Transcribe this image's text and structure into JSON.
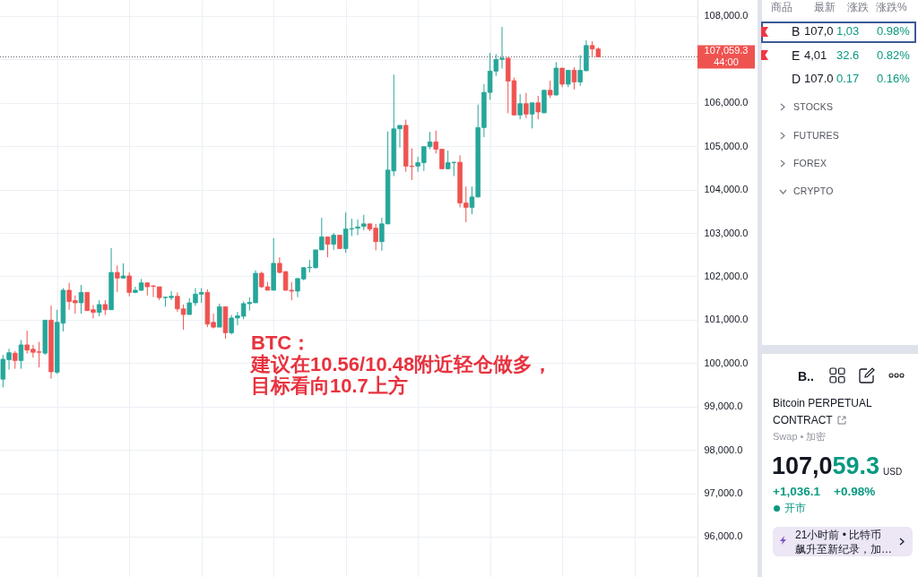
{
  "chart_data": [
    {
      "type": "candlestick",
      "categories": [
        null,
        null,
        null,
        null,
        null,
        null,
        null,
        null,
        null,
        null,
        null,
        null,
        null,
        null,
        null,
        null,
        null,
        null,
        null,
        null,
        null,
        null,
        null,
        null,
        null,
        null,
        null,
        null,
        null,
        null,
        null,
        null,
        null,
        null,
        null,
        null,
        null,
        null,
        null,
        null,
        null,
        null,
        null,
        null,
        null,
        null,
        null,
        null,
        null,
        null,
        null,
        null,
        null,
        null,
        null,
        null,
        null,
        null,
        null,
        null,
        null,
        null,
        null,
        null,
        null,
        null,
        null,
        null,
        null,
        null,
        null,
        null,
        null,
        null,
        null,
        null,
        null,
        null,
        null,
        null,
        null,
        null,
        null,
        null,
        null,
        null,
        null,
        null,
        null,
        null,
        null,
        null,
        null,
        null,
        null,
        null,
        null,
        null,
        null,
        null,
        null,
        null,
        null,
        null,
        null,
        null,
        null,
        null,
        null,
        null,
        null,
        null,
        null,
        null,
        null,
        null
      ],
      "ohlc": [
        [
          99630,
          100190,
          99440,
          100090
        ],
        [
          100080,
          100330,
          99850,
          100240
        ],
        [
          100230,
          100280,
          99870,
          100060
        ],
        [
          100060,
          100530,
          99870,
          100420
        ],
        [
          100420,
          100750,
          100220,
          100300
        ],
        [
          100320,
          100420,
          100130,
          100250
        ],
        [
          100260,
          100490,
          99900,
          100250
        ],
        [
          100230,
          100990,
          100190,
          100990
        ],
        [
          100990,
          101330,
          99640,
          99800
        ],
        [
          99790,
          101230,
          99750,
          100940
        ],
        [
          100920,
          101730,
          100730,
          101680
        ],
        [
          101680,
          101850,
          101230,
          101420
        ],
        [
          101440,
          101560,
          101140,
          101390
        ],
        [
          101390,
          101800,
          101140,
          101630
        ],
        [
          101630,
          101630,
          101200,
          101210
        ],
        [
          101230,
          101340,
          101030,
          101170
        ],
        [
          101170,
          101450,
          101080,
          101350
        ],
        [
          101350,
          101450,
          101110,
          101230
        ],
        [
          101230,
          102650,
          101230,
          102090
        ],
        [
          102090,
          102250,
          101640,
          101960
        ],
        [
          101960,
          102300,
          101950,
          102010
        ],
        [
          102010,
          102090,
          101540,
          101630
        ],
        [
          101630,
          101760,
          101610,
          101680
        ],
        [
          101680,
          101940,
          101660,
          101850
        ],
        [
          101850,
          101850,
          101560,
          101760
        ],
        [
          101780,
          101800,
          101520,
          101770
        ],
        [
          101760,
          101760,
          101450,
          101510
        ],
        [
          101510,
          101520,
          101300,
          101520
        ],
        [
          101510,
          101660,
          101450,
          101540
        ],
        [
          101540,
          101630,
          101180,
          101250
        ],
        [
          101250,
          101350,
          100770,
          101120
        ],
        [
          101120,
          101500,
          101120,
          101390
        ],
        [
          101390,
          101730,
          101320,
          101590
        ],
        [
          101590,
          101730,
          101390,
          101630
        ],
        [
          101630,
          101700,
          100830,
          100900
        ],
        [
          100940,
          101140,
          100800,
          100830
        ],
        [
          100830,
          101370,
          100830,
          101300
        ],
        [
          101300,
          101300,
          100560,
          100700
        ],
        [
          100700,
          101110,
          100660,
          101040
        ],
        [
          101040,
          101180,
          100870,
          101090
        ],
        [
          101080,
          101420,
          101010,
          101370
        ],
        [
          101370,
          101520,
          101210,
          101400
        ],
        [
          101390,
          102140,
          101390,
          102070
        ],
        [
          102070,
          102110,
          101730,
          101760
        ],
        [
          101760,
          101870,
          101680,
          101680
        ],
        [
          101680,
          102880,
          101680,
          102300
        ],
        [
          102300,
          102440,
          102070,
          102090
        ],
        [
          102110,
          102110,
          101670,
          101680
        ],
        [
          101680,
          101870,
          101450,
          101660
        ],
        [
          101660,
          101950,
          101520,
          101950
        ],
        [
          101940,
          102210,
          101910,
          102200
        ],
        [
          102200,
          102380,
          102090,
          102210
        ],
        [
          102200,
          102610,
          102180,
          102610
        ],
        [
          102610,
          103350,
          102610,
          102910
        ],
        [
          102910,
          102910,
          102440,
          102740
        ],
        [
          102740,
          103000,
          102610,
          102950
        ],
        [
          102950,
          102950,
          102630,
          102640
        ],
        [
          102640,
          103470,
          102540,
          103090
        ],
        [
          103090,
          103330,
          102930,
          103100
        ],
        [
          103110,
          103310,
          102950,
          103140
        ],
        [
          103150,
          103420,
          103060,
          103210
        ],
        [
          103210,
          103210,
          103040,
          103090
        ],
        [
          103110,
          103210,
          102600,
          102800
        ],
        [
          102800,
          103350,
          102590,
          103210
        ],
        [
          103210,
          105340,
          103200,
          104450
        ],
        [
          104430,
          106650,
          104310,
          105400
        ],
        [
          105400,
          105480,
          104970,
          105480
        ],
        [
          105480,
          105610,
          104410,
          104540
        ],
        [
          104540,
          104950,
          104220,
          104530
        ],
        [
          104540,
          104760,
          104410,
          104620
        ],
        [
          104620,
          104990,
          104430,
          104990
        ],
        [
          104990,
          105330,
          104930,
          105100
        ],
        [
          105100,
          105360,
          104830,
          104930
        ],
        [
          104930,
          104940,
          104470,
          104480
        ],
        [
          104480,
          104900,
          104470,
          104620
        ],
        [
          104620,
          104640,
          104310,
          104630
        ],
        [
          104630,
          104790,
          103590,
          103690
        ],
        [
          103690,
          104070,
          103250,
          103590
        ],
        [
          103590,
          104070,
          103430,
          103830
        ],
        [
          103830,
          105960,
          103820,
          105430
        ],
        [
          105430,
          106430,
          105210,
          106240
        ],
        [
          106240,
          107150,
          106070,
          106730
        ],
        [
          106730,
          107120,
          106620,
          107000
        ],
        [
          107000,
          107750,
          106790,
          107030
        ],
        [
          107030,
          107040,
          105760,
          106500
        ],
        [
          106510,
          106580,
          105710,
          105720
        ],
        [
          105720,
          106200,
          105620,
          105980
        ],
        [
          105980,
          106230,
          105650,
          105740
        ],
        [
          105740,
          106000,
          105410,
          106000
        ],
        [
          106000,
          106160,
          105620,
          105790
        ],
        [
          105770,
          106290,
          105760,
          106290
        ],
        [
          106290,
          106510,
          106110,
          106180
        ],
        [
          106180,
          106940,
          106170,
          106800
        ],
        [
          106800,
          106800,
          106360,
          106430
        ],
        [
          106430,
          106760,
          106360,
          106750
        ],
        [
          106750,
          106820,
          106310,
          106480
        ],
        [
          106480,
          107100,
          106390,
          106750
        ],
        [
          106740,
          107440,
          106730,
          107320
        ],
        [
          107320,
          107420,
          107070,
          107240
        ],
        [
          107240,
          107280,
          107050,
          107059.3
        ],
        null,
        null,
        null,
        null,
        null,
        null,
        null,
        null,
        null,
        null,
        null,
        null,
        null,
        null,
        null,
        null
      ],
      "colors": [
        "#26a69a",
        "#26a69a",
        "#ef5350",
        "#26a69a",
        "#ef5350",
        "#ef5350",
        "#ef5350",
        "#26a69a",
        "#ef5350",
        "#26a69a",
        "#26a69a",
        "#ef5350",
        "#ef5350",
        "#26a69a",
        "#ef5350",
        "#ef5350",
        "#26a69a",
        "#ef5350",
        "#26a69a",
        "#ef5350",
        "#26a69a",
        "#ef5350",
        "#26a69a",
        "#26a69a",
        "#ef5350",
        "#ef5350",
        "#ef5350",
        "#26a69a",
        "#26a69a",
        "#ef5350",
        "#ef5350",
        "#26a69a",
        "#26a69a",
        "#26a69a",
        "#ef5350",
        "#ef5350",
        "#26a69a",
        "#ef5350",
        "#26a69a",
        "#26a69a",
        "#26a69a",
        "#26a69a",
        "#26a69a",
        "#ef5350",
        "#ef5350",
        "#26a69a",
        "#ef5350",
        "#ef5350",
        "#ef5350",
        "#26a69a",
        "#26a69a",
        "#26a69a",
        "#26a69a",
        "#26a69a",
        "#ef5350",
        "#26a69a",
        "#ef5350",
        "#26a69a",
        "#26a69a",
        "#26a69a",
        "#26a69a",
        "#ef5350",
        "#ef5350",
        "#26a69a",
        "#26a69a",
        "#26a69a",
        "#26a69a",
        "#ef5350",
        "#ef5350",
        "#26a69a",
        "#26a69a",
        "#26a69a",
        "#ef5350",
        "#ef5350",
        "#26a69a",
        "#26a69a",
        "#ef5350",
        "#ef5350",
        "#26a69a",
        "#26a69a",
        "#26a69a",
        "#26a69a",
        "#26a69a",
        "#26a69a",
        "#ef5350",
        "#ef5350",
        "#26a69a",
        "#ef5350",
        "#26a69a",
        "#ef5350",
        "#26a69a",
        "#ef5350",
        "#26a69a",
        "#ef5350",
        "#26a69a",
        "#ef5350",
        "#26a69a",
        "#26a69a",
        "#ef5350",
        "#ef5350",
        null,
        null,
        null,
        null,
        null,
        null,
        null,
        null,
        null,
        null,
        null,
        null,
        null,
        null,
        null,
        null
      ],
      "ylim": [
        95070,
        108370
      ],
      "yticks": [
        {
          "value": 96000,
          "label": "96,000.0"
        },
        {
          "value": 97000,
          "label": "97,000.0"
        },
        {
          "value": 98000,
          "label": "98,000.0"
        },
        {
          "value": 99000,
          "label": "99,000.0"
        },
        {
          "value": 100000,
          "label": "100,000.0"
        },
        {
          "value": 101000,
          "label": "101,000.0"
        },
        {
          "value": 102000,
          "label": "102,000.0"
        },
        {
          "value": 103000,
          "label": "103,000.0"
        },
        {
          "value": 104000,
          "label": "104,000.0"
        },
        {
          "value": 105000,
          "label": "105,000.0"
        },
        {
          "value": 106000,
          "label": "106,000.0"
        },
        {
          "value": 107000,
          "label": null
        },
        {
          "value": 108000,
          "label": "108,000.0"
        }
      ],
      "tick_labels": "y",
      "grid": true,
      "ref_lines": [
        {
          "axis": "y",
          "value": 107059.3,
          "label": "107,059.3\n44:00",
          "color": "#5d606b",
          "line_style": "dotted"
        }
      ],
      "annotations": [
        "BTC：",
        "建议在10.56/10.48附近轻仓做多，",
        "目标看向10.7上方"
      ]
    },
    {
      "type": "other",
      "annotations": [
        "商品",
        "最新",
        "涨跌",
        "涨跌%",
        "B",
        "107,0",
        "1,03",
        "0.98%",
        "E",
        "4,01",
        "32.6",
        "0.82%",
        "D",
        "107.0",
        "0.17",
        "0.16%",
        "STOCKS",
        "FUTURES",
        "FOREX",
        "CRYPTO",
        "B..",
        "Bitcoin PERPETUAL",
        "CONTRACT",
        "Swap • 加密",
        "107,059.3",
        "USD",
        "+1,036.1",
        "+0.98%",
        "开市",
        "21小时前 • 比特币",
        "飙升至新纪录，加…"
      ]
    }
  ]
}
